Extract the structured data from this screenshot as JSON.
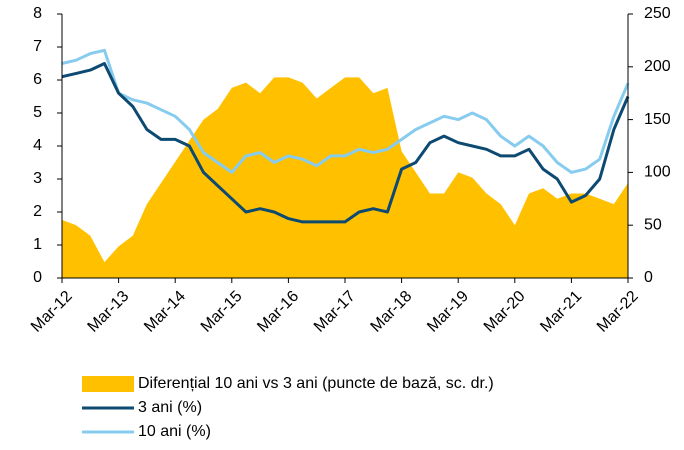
{
  "chart_data": {
    "type": "line",
    "categories": [
      "Mar-12",
      null,
      null,
      null,
      "Mar-13",
      null,
      null,
      null,
      "Mar-14",
      null,
      null,
      null,
      "Mar-15",
      null,
      null,
      null,
      "Mar-16",
      null,
      null,
      null,
      "Mar-17",
      null,
      null,
      null,
      "Mar-18",
      null,
      null,
      null,
      "Mar-19",
      null,
      null,
      null,
      "Mar-20",
      null,
      null,
      null,
      "Mar-21",
      null,
      null,
      null,
      "Mar-22"
    ],
    "series": [
      {
        "name": "Diferențial 10 ani vs 3 ani (puncte de bază, sc. dr.)",
        "color": "#ffc000",
        "axis": "y2",
        "style": "area",
        "values": [
          55,
          50,
          40,
          15,
          30,
          40,
          70,
          90,
          110,
          130,
          150,
          160,
          180,
          185,
          175,
          190,
          190,
          185,
          170,
          180,
          190,
          190,
          175,
          180,
          120,
          100,
          80,
          80,
          100,
          95,
          80,
          70,
          50,
          80,
          85,
          75,
          80,
          80,
          75,
          70,
          90
        ]
      },
      {
        "name": "3 ani (%)",
        "color": "#0d4a72",
        "values": [
          6.1,
          6.2,
          6.3,
          6.5,
          5.6,
          5.2,
          4.5,
          4.2,
          4.2,
          4.0,
          3.2,
          2.8,
          2.4,
          2.0,
          2.1,
          2.0,
          1.8,
          1.7,
          1.7,
          1.7,
          1.7,
          2.0,
          2.1,
          2.0,
          3.3,
          3.5,
          4.1,
          4.3,
          4.1,
          4.0,
          3.9,
          3.7,
          3.7,
          3.9,
          3.3,
          3.0,
          2.3,
          2.5,
          3.0,
          4.5,
          5.5
        ]
      },
      {
        "name": "10 ani (%)",
        "color": "#87ccee",
        "values": [
          6.5,
          6.6,
          6.8,
          6.9,
          5.6,
          5.4,
          5.3,
          5.1,
          4.9,
          4.5,
          3.8,
          3.5,
          3.2,
          3.7,
          3.8,
          3.5,
          3.7,
          3.6,
          3.4,
          3.7,
          3.7,
          3.9,
          3.8,
          3.9,
          4.2,
          4.5,
          4.7,
          4.9,
          4.8,
          5.0,
          4.8,
          4.3,
          4.0,
          4.3,
          4.0,
          3.5,
          3.2,
          3.3,
          3.6,
          4.9,
          5.9
        ]
      }
    ],
    "ylim": [
      0,
      8
    ],
    "yticks": [
      0,
      1,
      2,
      3,
      4,
      5,
      6,
      7,
      8
    ],
    "y2lim": [
      0,
      250
    ],
    "y2ticks": [
      0,
      50,
      100,
      150,
      200,
      250
    ],
    "legend": "bottom"
  }
}
